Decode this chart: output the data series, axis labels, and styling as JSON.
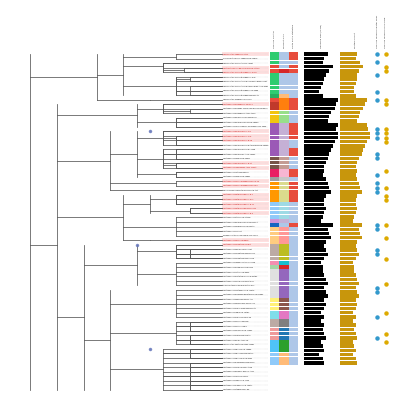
{
  "bg_color": "#ffffff",
  "n_rows": 75,
  "col_headers": [
    "Species cluster",
    "Percent G+C",
    "delta delta statistics",
    "Genome size (in bp)",
    "Protein count",
    "Species found in water kefir",
    "Species found in milk kefir"
  ],
  "red_text_rows": [
    0,
    3,
    4,
    11,
    17,
    18,
    19,
    24,
    25,
    28,
    29,
    31,
    32,
    33,
    34,
    35,
    41,
    42
  ],
  "highlight_color": "#ffcccc",
  "row_colors_col1": [
    "#2ecc71",
    "#2ecc71",
    "#2ecc71",
    "#e74c3c",
    "#e74c3c",
    "#2ecc71",
    "#2ecc71",
    "#2ecc71",
    "#2ecc71",
    "#2ecc71",
    "#27ae60",
    "#e74c3c",
    "#c0392b",
    "#c0392b",
    "#f1c40f",
    "#f1c40f",
    "#f1c40f",
    "#9b59b6",
    "#9b59b6",
    "#9b59b6",
    "#9b59b6",
    "#9b59b6",
    "#9b59b6",
    "#9b59b6",
    "#9b59b6",
    "#795548",
    "#795548",
    "#795548",
    "#e91e63",
    "#e91e63",
    "#9e9e9e",
    "#ff9800",
    "#ff9800",
    "#ff9800",
    "#ff9800",
    "#ff9800",
    "#90caf9",
    "#90caf9",
    "#90caf9",
    "#90caf9",
    "#ce93d8",
    "#1565c0",
    "#ffcc80",
    "#ffcc80",
    "#ffcc80",
    "#ffcc80",
    "#bcaaa4",
    "#bcaaa4",
    "#bcaaa4",
    "#bcaaa4",
    "#f48fb1",
    "#a5d6a7",
    "#e0e0e0",
    "#e0e0e0",
    "#e0e0e0",
    "#e0e0e0",
    "#e0e0e0",
    "#e0e0e0",
    "#e0e0e0",
    "#fff176",
    "#fff176",
    "#fff176",
    "#80deea",
    "#80deea",
    "#bcaaa4",
    "#bcaaa4",
    "#ef9a9a",
    "#ef9a9a",
    "#ef9a9a",
    "#4fc3f7",
    "#4fc3f7",
    "#4fc3f7",
    "#90caf9",
    "#90caf9",
    "#90caf9"
  ],
  "row_colors_col2": [
    "#aec7e8",
    "#aec7e8",
    "#aec7e8",
    "#aec7e8",
    "#d62728",
    "#aec7e8",
    "#aec7e8",
    "#aec7e8",
    "#aec7e8",
    "#aec7e8",
    "#ffbb78",
    "#ff7f0e",
    "#ff7f0e",
    "#ff7f0e",
    "#98df8a",
    "#98df8a",
    "#98df8a",
    "#c5b0d5",
    "#c5b0d5",
    "#c5b0d5",
    "#c5b0d5",
    "#c5b0d5",
    "#c5b0d5",
    "#c5b0d5",
    "#c5b0d5",
    "#c49c94",
    "#c49c94",
    "#c49c94",
    "#f7b6d2",
    "#f7b6d2",
    "#c7c7c7",
    "#dbdb8d",
    "#dbdb8d",
    "#dbdb8d",
    "#dbdb8d",
    "#dbdb8d",
    "#9edae5",
    "#9edae5",
    "#9edae5",
    "#9edae5",
    "#c5b0d5",
    "#aec7e8",
    "#ff9896",
    "#ff9896",
    "#ff9896",
    "#ff9896",
    "#bcbd22",
    "#bcbd22",
    "#bcbd22",
    "#bcbd22",
    "#17becf",
    "#d62728",
    "#9467bd",
    "#9467bd",
    "#9467bd",
    "#9467bd",
    "#9467bd",
    "#9467bd",
    "#9467bd",
    "#8c564b",
    "#8c564b",
    "#8c564b",
    "#e377c2",
    "#e377c2",
    "#7f7f7f",
    "#7f7f7f",
    "#1f77b4",
    "#1f77b4",
    "#1f77b4",
    "#2ca02c",
    "#2ca02c",
    "#2ca02c",
    "#ffbb78",
    "#ffbb78",
    "#ffbb78"
  ],
  "row_colors_col3": [
    "#e74c3c",
    "#e74c3c",
    "#aec7e8",
    "#e74c3c",
    "#e74c3c",
    "#aec7e8",
    "#aec7e8",
    "#aec7e8",
    "#aec7e8",
    "#aec7e8",
    "#aec7e8",
    "#e74c3c",
    "#e74c3c",
    "#e74c3c",
    "#aec7e8",
    "#aec7e8",
    "#aec7e8",
    "#e74c3c",
    "#e74c3c",
    "#e74c3c",
    "#e74c3c",
    "#aec7e8",
    "#aec7e8",
    "#e74c3c",
    "#e74c3c",
    "#aec7e8",
    "#aec7e8",
    "#aec7e8",
    "#e74c3c",
    "#e74c3c",
    "#aec7e8",
    "#e74c3c",
    "#e74c3c",
    "#e74c3c",
    "#e74c3c",
    "#e74c3c",
    "#aec7e8",
    "#aec7e8",
    "#aec7e8",
    "#aec7e8",
    "#aec7e8",
    "#e74c3c",
    "#aec7e8",
    "#aec7e8",
    "#aec7e8",
    "#aec7e8",
    "#aec7e8",
    "#aec7e8",
    "#aec7e8",
    "#aec7e8",
    "#aec7e8",
    "#aec7e8",
    "#aec7e8",
    "#aec7e8",
    "#aec7e8",
    "#aec7e8",
    "#aec7e8",
    "#aec7e8",
    "#aec7e8",
    "#aec7e8",
    "#aec7e8",
    "#aec7e8",
    "#aec7e8",
    "#aec7e8",
    "#aec7e8",
    "#aec7e8",
    "#aec7e8",
    "#aec7e8",
    "#aec7e8",
    "#aec7e8",
    "#aec7e8",
    "#aec7e8",
    "#aec7e8",
    "#aec7e8",
    "#aec7e8"
  ],
  "genome_bars": [
    0.7,
    0.6,
    0.55,
    0.85,
    0.75,
    0.65,
    0.6,
    0.55,
    0.5,
    0.45,
    0.55,
    1.0,
    0.95,
    0.9,
    0.8,
    0.75,
    0.7,
    1.0,
    0.95,
    1.0,
    1.0,
    0.9,
    0.85,
    0.8,
    0.75,
    0.7,
    0.65,
    0.6,
    0.6,
    0.55,
    0.65,
    0.7,
    0.75,
    0.8,
    0.65,
    0.6,
    0.6,
    0.65,
    0.6,
    0.55,
    0.5,
    0.85,
    0.7,
    0.75,
    0.8,
    0.65,
    0.6,
    0.65,
    0.7,
    0.6,
    0.5,
    0.55,
    0.55,
    0.6,
    0.65,
    0.7,
    0.6,
    0.65,
    0.7,
    0.6,
    0.65,
    0.6,
    0.5,
    0.6,
    0.5,
    0.6,
    0.55,
    0.6,
    0.65,
    0.5,
    0.55,
    0.6,
    0.45,
    0.55,
    0.6
  ],
  "protein_bars": [
    0.55,
    0.5,
    0.65,
    0.75,
    0.6,
    0.55,
    0.55,
    0.5,
    0.45,
    0.45,
    0.5,
    0.85,
    0.8,
    0.75,
    0.65,
    0.6,
    0.55,
    0.85,
    0.9,
    0.95,
    0.95,
    0.85,
    0.8,
    0.75,
    0.7,
    0.6,
    0.55,
    0.5,
    0.55,
    0.5,
    0.55,
    0.6,
    0.65,
    0.7,
    0.55,
    0.5,
    0.5,
    0.55,
    0.5,
    0.45,
    0.4,
    0.7,
    0.6,
    0.65,
    0.7,
    0.55,
    0.5,
    0.55,
    0.6,
    0.5,
    0.4,
    0.45,
    0.45,
    0.5,
    0.55,
    0.6,
    0.5,
    0.55,
    0.6,
    0.5,
    0.55,
    0.5,
    0.4,
    0.5,
    0.4,
    0.5,
    0.45,
    0.5,
    0.55,
    0.4,
    0.45,
    0.5,
    0.4,
    0.5,
    0.55
  ],
  "water_kefir_rows": [
    0,
    2,
    5,
    9,
    11,
    18,
    19,
    20,
    24,
    25,
    29,
    31,
    32,
    33,
    41,
    42,
    47,
    48,
    56,
    57,
    63,
    68
  ],
  "milk_kefir_rows": [
    0,
    3,
    4,
    11,
    12,
    18,
    19,
    20,
    21,
    28,
    32,
    34,
    35,
    41,
    44,
    49,
    55,
    62,
    67,
    69
  ],
  "species_names": [
    "Leuconostoc nagelii T2a+T1",
    "Liquorilactobacillus nagelii DSM 13675",
    "Leuconostoc mesent. KFCC 16054",
    "Lactilactobacillus delbrueckii DSM 14420",
    "Leuconostoc mesenteroides Kul-m-18",
    "Leuconostoc mesenteroides Kul-m-6",
    "Leuconostoc mesent. subsp. cremoris DSM 20084",
    "Leuconostoc mesent. subsp. jonquieres ATCC 8081",
    "Leuconostoc mesenteroides KFCC 9685",
    "Leuconostoc mesenteroides DSM 20343",
    "Leuconostoc konguensis 716-10",
    "Lactobacillus acidophilus Kul-m-3",
    "Lactobacillus acidoph. subsp. walligenus JCM 5572",
    "Lactobacillus acidophilus ATCC 4357",
    "Lactobacillus parabuchneri DSM 5707",
    "Lactobacillus parafarraginis DSM 18390",
    "Lactobacillus farofarraginis Torquens KCTC 3035",
    "Lactobacillus paracasei Kul-m-1",
    "Lactobacillus paracasei Kul-m-8",
    "Lactobacillus paracasei Kul-w-19",
    "Lactobacillus paracasei subsp. tolerans DSM 20258",
    "Lactobacillus paracasei subsp. 3956",
    "Lactobacillus paracasei ATCC 25302",
    "Lactobacillus casei DSM 20011",
    "Lactobacillus paracasei Kul-w-24",
    "Lactobacillus rhamnosus ATCC 27304",
    "Lactobacillus feti DSM 26991",
    "Lactobacillus casei DSM 10691",
    "Lactobacillus heilongjiangensis Kul-m-13",
    "Lactobacillus heilongjiangensis Kul-w-2",
    "Oenococcus alcoholitolerans CRAG 474",
    "Lactobacillus satsumensis Kul-w-1",
    "Lactobacillus satsumensis Kul-m-7",
    "Lactobacillus satsumensis Kul-w-11",
    "Lactobacillus satsumensis JCM 12583",
    "Lactobacillus satsumensis Kul-w-3",
    "Lactobacillus stores JCM 14109",
    "Lactobacillus parafarraginis JCM 12814",
    "Lactobacillus korecensis JCM 13047",
    "Lactobacillus TY2024",
    "Companilactobacillus nanjia SYF-15-5a",
    "Lactobacillus kefiri JCM 5818",
    "Lactobacillus helveticus Kul-w-4",
    "Lactobacillus saniviri LMG 22054",
    "Lactobacillus helveticus DSM 20075",
    "Lactobacillus helveticus JCM 20175",
    "Lactobacillus japonicus ATCC 35208",
    "Lactobacillus acidipiscis JCM 6523",
    "Lactobacillus futsaii JCM 6523",
    "Lactobacillus acetotolerans JCM 60462",
    "Lactobacillus nasuensis JCM 14691",
    "Limosilactobacillus fermentum MF1",
    "Lactobacillus chatadeus JCM 10040",
    "Lactobacillus ginsenosidimutans LRCO E1083",
    "Lactobacillus suebicus JCM 11457",
    "Lactobacillus sucoxumne SCCO 786",
    "Lactobacillus malayensis DSM 21541",
    "Lactobacillus rapi DSM 15497",
    "Lactobacillus malonus JCM V-30",
    "Lactobacillus nasuuli Kefir08",
    "Lactobacillus nasuuli reg 9",
    "Lactobacillus barneri DSM 17502",
    "Lactobacillus mara DSM 17542",
    "Lactobacillus galeri ATCC 76",
    "Leuconostoc gastricum LMG 18891",
    "Lactobacillus spicus DSM 16988",
    "Lactobacillus spicuous DSM 20431",
    "Lactobacillus spicuum DSM 6002",
    "Lactobacillus glaucosum DSM 2110",
    "Lactobacillus hominis JCM 14139",
    "Lactobacillus gasseus BCRC 14052",
    "Lactobacillus farraginis SD-1",
    "Lactobacillus faecis JCM 1723",
    "Lactobacillus silagens JCM 15047",
    "Lactobacillus utopus JCM T-98"
  ],
  "tree_color": "#555555",
  "dot_water_color": "#3399cc",
  "dot_milk_color": "#ddaa00"
}
